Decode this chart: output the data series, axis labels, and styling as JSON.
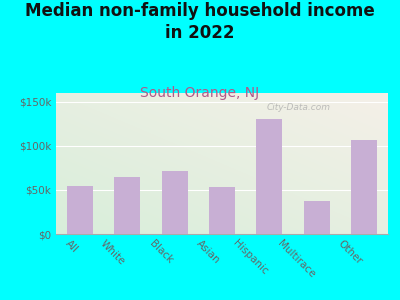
{
  "title": "Median non-family household income\nin 2022",
  "subtitle": "South Orange, NJ",
  "categories": [
    "All",
    "White",
    "Black",
    "Asian",
    "Hispanic",
    "Multirace",
    "Other"
  ],
  "values": [
    55000,
    65000,
    72000,
    53000,
    130000,
    37000,
    107000
  ],
  "bar_color": "#c8afd4",
  "title_fontsize": 12,
  "subtitle_fontsize": 10,
  "subtitle_color": "#b05a8a",
  "title_color": "#111111",
  "background_color": "#00FFFF",
  "plot_bg_color_topleft": "#d8eeda",
  "plot_bg_color_bottomright": "#f0ece4",
  "ylim": [
    0,
    160000
  ],
  "yticks": [
    0,
    50000,
    100000,
    150000
  ],
  "ytick_labels": [
    "$0",
    "$50k",
    "$100k",
    "$150k"
  ],
  "watermark": "City-Data.com",
  "tick_label_fontsize": 7.5,
  "tick_color": "#666666"
}
